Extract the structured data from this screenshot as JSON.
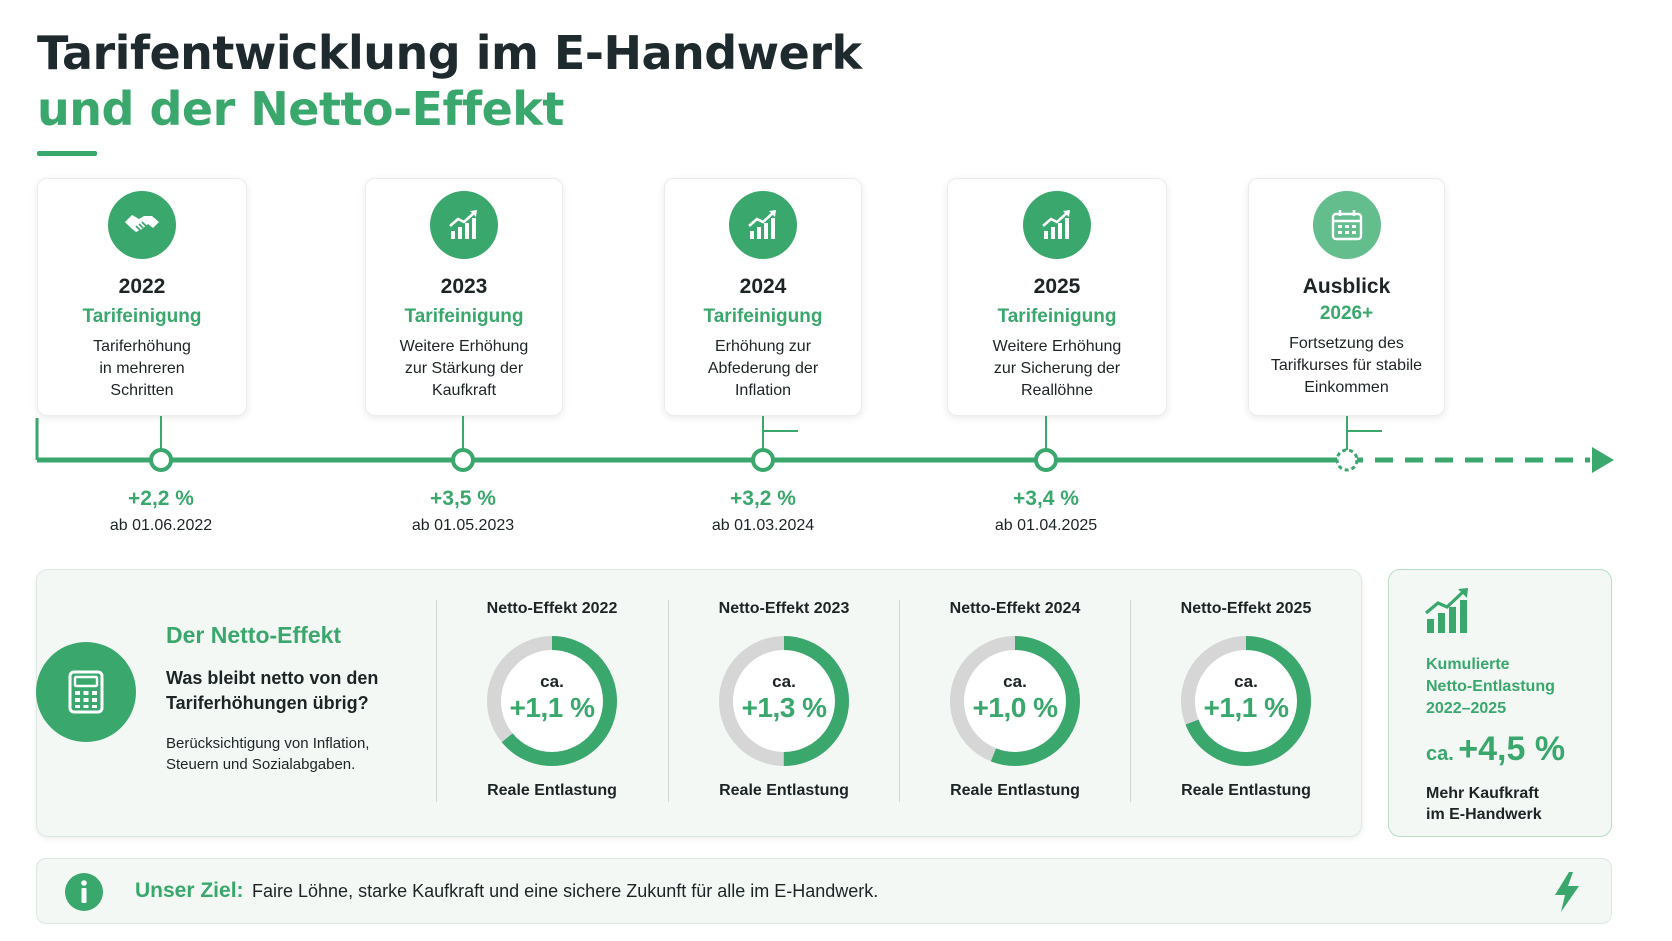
{
  "title": {
    "line1": "Tarifentwicklung im E-Handwerk",
    "line2": "und der Netto-Effekt"
  },
  "colors": {
    "accent": "#3aa76d",
    "accent_light": "#63bd8c",
    "text": "#1d2426",
    "panel_bg": "#f3f8f5",
    "ring_track": "#d6d6d6"
  },
  "timeline": {
    "cards": [
      {
        "icon": "handshake-icon",
        "year": "2022",
        "subtitle": "Tarifeinigung",
        "desc": [
          "Tariferhöhung",
          "in mehreren",
          "Schritten"
        ]
      },
      {
        "icon": "growth-chart-icon",
        "year": "2023",
        "subtitle": "Tarifeinigung",
        "desc": [
          "Weitere Erhöhung",
          "zur Stärkung der",
          "Kaufkraft"
        ]
      },
      {
        "icon": "growth-chart-icon",
        "year": "2024",
        "subtitle": "Tarifeinigung",
        "desc": [
          "Erhöhung zur",
          "Abfederung der",
          "Inflation"
        ]
      },
      {
        "icon": "growth-chart-icon",
        "year": "2025",
        "subtitle": "Tarifeinigung",
        "desc": [
          "Weitere Erhöhung",
          "zur Sicherung der",
          "Reallöhne"
        ]
      },
      {
        "icon": "calendar-icon",
        "year": "Ausblick",
        "subtitle": "2026+",
        "desc": [
          "Fortsetzung des",
          "Tarifkurses für stabile",
          "Einkommen"
        ]
      }
    ],
    "ticks": [
      {
        "pct": "+2,2 %",
        "date": "ab 01.06.2022"
      },
      {
        "pct": "+3,5 %",
        "date": "ab 01.05.2023"
      },
      {
        "pct": "+3,2 %",
        "date": "ab 01.03.2024"
      },
      {
        "pct": "+3,4 %",
        "date": "ab 01.04.2025"
      }
    ]
  },
  "netto": {
    "heading": "Der Netto-Effekt",
    "question": "Was bleibt netto von den Tariferhöhungen übrig?",
    "note": "Berücksichtigung von Inflation, Steuern und Sozialabgaben.",
    "ca_label": "ca.",
    "foot_label": "Reale Entlastung",
    "items": [
      {
        "title": "Netto-Effekt 2022",
        "value": "+1,1 %"
      },
      {
        "title": "Netto-Effekt 2023",
        "value": "+1,3 %"
      },
      {
        "title": "Netto-Effekt 2024",
        "value": "+1,0 %"
      },
      {
        "title": "Netto-Effekt 2025",
        "value": "+1,1 %"
      }
    ]
  },
  "chart_data": {
    "type": "pie",
    "title": "",
    "categories": [
      "Netto-Effekt 2022",
      "Netto-Effekt 2023",
      "Netto-Effekt 2024",
      "Netto-Effekt 2025"
    ],
    "values": [
      1.1,
      1.3,
      1.0,
      1.1
    ],
    "unit": "%",
    "ring_fill_fraction": [
      0.64,
      0.5,
      0.56,
      0.69
    ]
  },
  "cumulative": {
    "label": [
      "Kumulierte",
      "Netto-Entlastung",
      "2022–2025"
    ],
    "ca": "ca.",
    "value": "+4,5 %",
    "foot": [
      "Mehr Kaufkraft",
      "im E-Handwerk"
    ]
  },
  "goal": {
    "label": "Unser Ziel:",
    "text": "Faire Löhne, starke Kaufkraft und eine sichere Zukunft für alle im E-Handwerk."
  }
}
